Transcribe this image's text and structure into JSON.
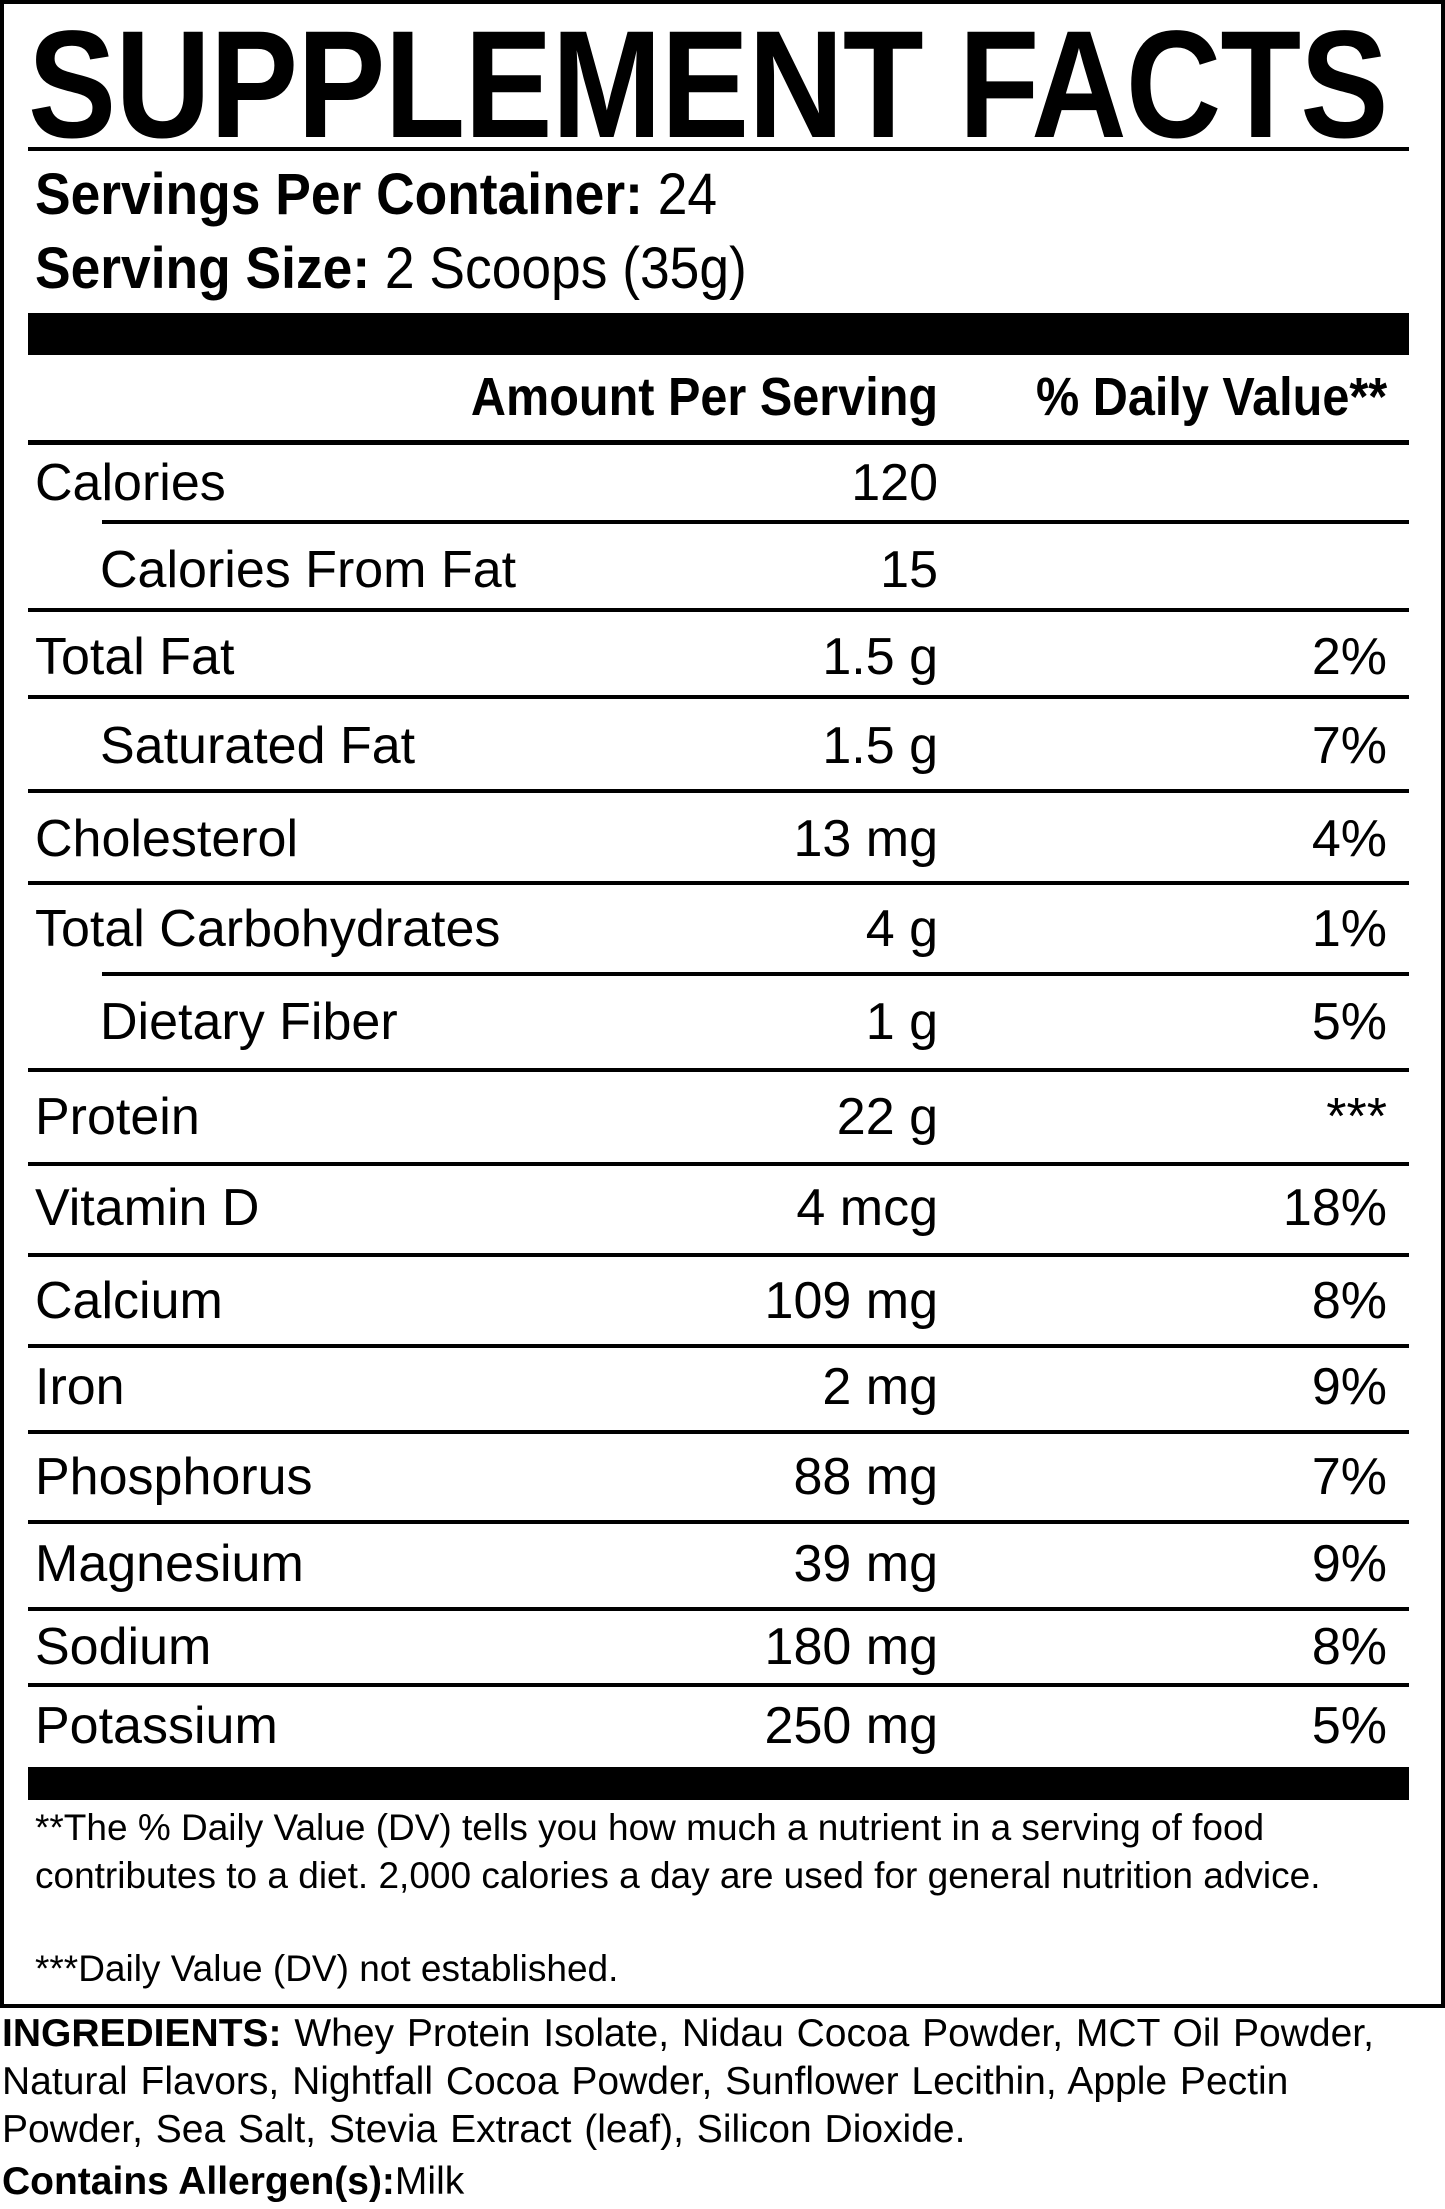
{
  "title": "SUPPLEMENT FACTS",
  "servings_per_container": {
    "label": "Servings Per Container:",
    "value": "24"
  },
  "serving_size": {
    "label": "Serving Size:",
    "value": "2 Scoops (35g)"
  },
  "header": {
    "amount": "Amount Per Serving",
    "daily_value": "% Daily Value**"
  },
  "rows": [
    {
      "name": "Calories",
      "amount": "120",
      "dv": ""
    },
    {
      "name": "Calories From Fat",
      "amount": "15",
      "dv": ""
    },
    {
      "name": "Total Fat",
      "amount": "1.5 g",
      "dv": "2%"
    },
    {
      "name": "Saturated Fat",
      "amount": "1.5 g",
      "dv": "7%"
    },
    {
      "name": "Cholesterol",
      "amount": "13 mg",
      "dv": "4%"
    },
    {
      "name": "Total Carbohydrates",
      "amount": "4 g",
      "dv": "1%"
    },
    {
      "name": "Dietary Fiber",
      "amount": "1 g",
      "dv": "5%"
    },
    {
      "name": "Protein",
      "amount": "22 g",
      "dv": "***"
    },
    {
      "name": "Vitamin D",
      "amount": "4 mcg",
      "dv": "18%"
    },
    {
      "name": "Calcium",
      "amount": "109 mg",
      "dv": "8%"
    },
    {
      "name": "Iron",
      "amount": "2 mg",
      "dv": "9%"
    },
    {
      "name": "Phosphorus",
      "amount": "88 mg",
      "dv": "7%"
    },
    {
      "name": "Magnesium",
      "amount": "39 mg",
      "dv": "9%"
    },
    {
      "name": "Sodium",
      "amount": "180 mg",
      "dv": "8%"
    },
    {
      "name": "Potassium",
      "amount": "250 mg",
      "dv": "5%"
    }
  ],
  "footnotes": [
    "**The % Daily Value (DV) tells you how much a nutrient in a serving of food contributes to a diet. 2,000 calories a day are used for general nutrition advice.",
    "***Daily Value (DV) not established."
  ],
  "ingredients": {
    "label": "INGREDIENTS:",
    "text": "Whey Protein Isolate, Nidau Cocoa Powder, MCT Oil Powder, Natural Flavors, Nightfall Cocoa Powder, Sunflower Lecithin, Apple Pectin Powder, Sea Salt, Stevia Extract (leaf), Silicon Dioxide."
  },
  "allergens": {
    "label": "Contains Allergen(s):",
    "value": "Milk"
  }
}
